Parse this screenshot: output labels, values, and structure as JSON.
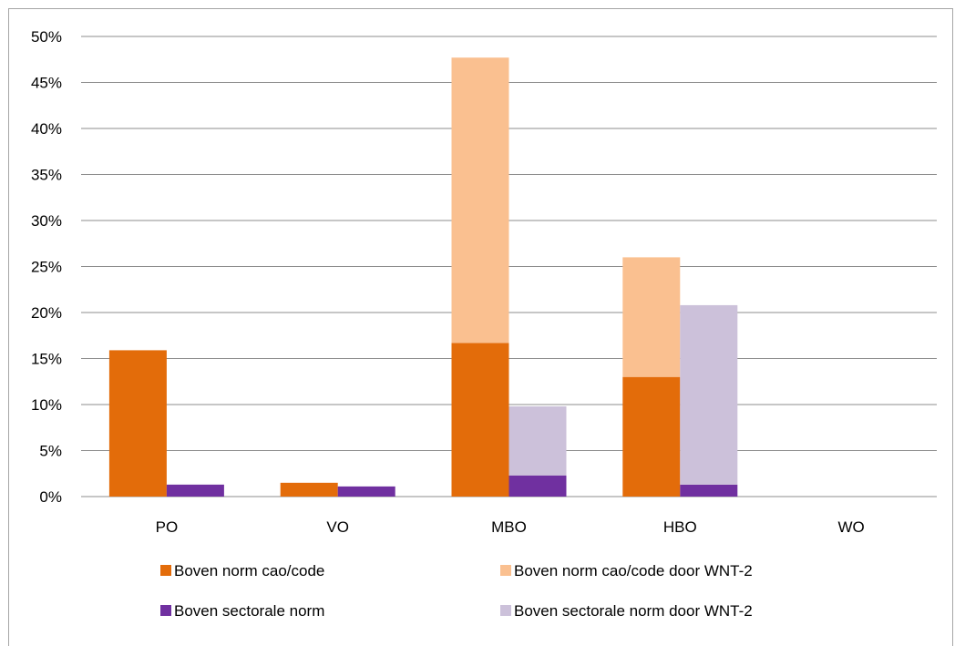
{
  "chart_data": {
    "type": "bar",
    "stacked": true,
    "categories": [
      "PO",
      "VO",
      "MBO",
      "HBO",
      "WO"
    ],
    "ylim": [
      0,
      50
    ],
    "yticks": [
      "0%",
      "5%",
      "10%",
      "15%",
      "20%",
      "25%",
      "30%",
      "35%",
      "40%",
      "45%",
      "50%"
    ],
    "grid": true,
    "legend_position": "bottom",
    "stacks": [
      {
        "name": "cao",
        "series": [
          {
            "name": "Boven norm cao/code",
            "color": "#e36c0a",
            "values": [
              15.9,
              1.5,
              16.7,
              13.0,
              0
            ]
          },
          {
            "name": "Boven norm cao/code door WNT-2",
            "color": "#fac090",
            "values": [
              0,
              0,
              31.0,
              13.0,
              0
            ]
          }
        ]
      },
      {
        "name": "sector",
        "series": [
          {
            "name": "Boven sectorale norm",
            "color": "#7030a0",
            "values": [
              1.3,
              1.1,
              2.3,
              1.3,
              0
            ]
          },
          {
            "name": "Boven sectorale norm door WNT-2",
            "color": "#ccc1da",
            "values": [
              0,
              0,
              7.5,
              19.5,
              0
            ]
          }
        ]
      }
    ],
    "legend": [
      {
        "label": "Boven norm cao/code",
        "color": "#e36c0a"
      },
      {
        "label": "Boven norm cao/code door WNT-2",
        "color": "#fac090"
      },
      {
        "label": "Boven sectorale norm",
        "color": "#7030a0"
      },
      {
        "label": "Boven sectorale norm door WNT-2",
        "color": "#ccc1da"
      }
    ]
  }
}
